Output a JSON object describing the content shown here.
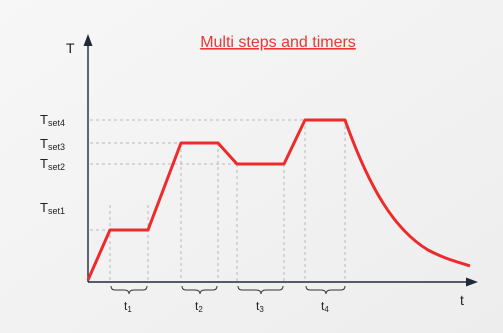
{
  "title": "Multi steps and timers",
  "axes": {
    "y_label": "T",
    "x_label": "t"
  },
  "levels": [
    {
      "main": "T",
      "sub": "set1"
    },
    {
      "main": "T",
      "sub": "set2"
    },
    {
      "main": "T",
      "sub": "set3"
    },
    {
      "main": "T",
      "sub": "set4"
    }
  ],
  "timers": [
    {
      "main": "t",
      "sub": "1"
    },
    {
      "main": "t",
      "sub": "2"
    },
    {
      "main": "t",
      "sub": "3"
    },
    {
      "main": "t",
      "sub": "4"
    }
  ],
  "colors": {
    "curve": "#ee2b2b",
    "title": "#e53935",
    "axis": "#1e2a3a"
  }
}
